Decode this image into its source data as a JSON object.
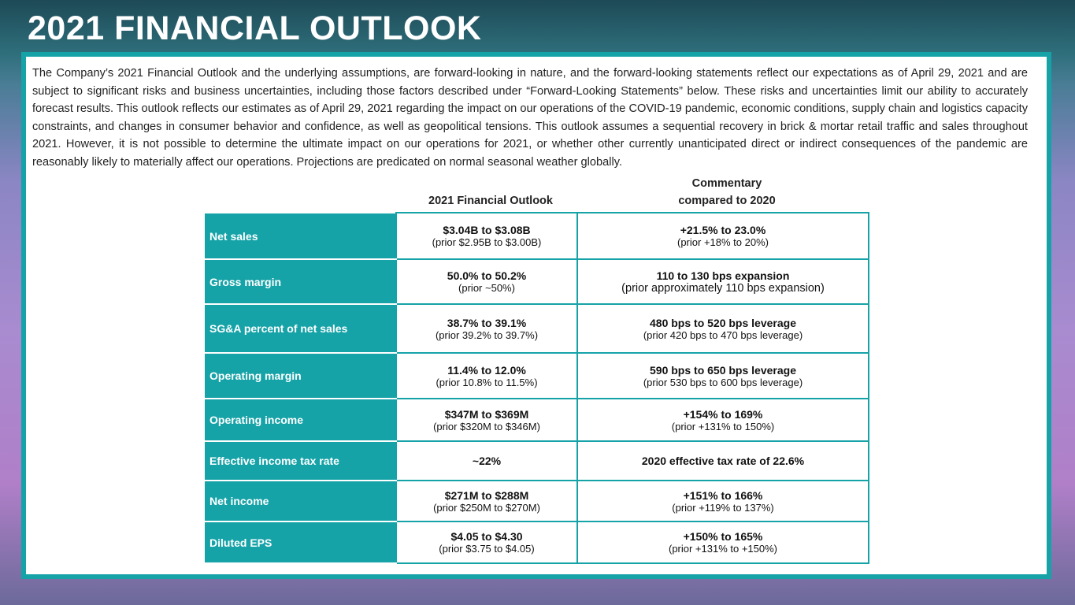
{
  "header": {
    "title": "2021 FINANCIAL OUTLOOK"
  },
  "intro": "The Company’s 2021 Financial Outlook and the underlying assumptions, are forward-looking in nature, and the forward-looking statements reflect our expectations as of April 29, 2021 and are subject to significant risks and business uncertainties, including those factors described under “Forward-Looking Statements” below. These risks and uncertainties limit our ability to accurately forecast results. This outlook reflects our estimates as of April 29, 2021 regarding the impact on our operations of the COVID-19 pandemic, economic conditions, supply chain and logistics capacity constraints, and changes in consumer behavior and confidence, as well as geopolitical tensions. This outlook assumes a sequential recovery in brick & mortar retail traffic and sales throughout 2021. However, it is not possible to determine the ultimate impact on our operations for 2021, or whether other currently unanticipated direct or indirect consequences of the pandemic are reasonably likely to materially affect our operations. Projections are predicated on normal seasonal weather globally.",
  "table": {
    "columns": [
      "2021 Financial Outlook",
      "Commentary compared to 2020"
    ],
    "rows": [
      {
        "label": "Net sales",
        "outlook": {
          "main": "$3.04B to $3.08B",
          "prior": "(prior $2.95B to $3.00B)"
        },
        "commentary": {
          "main": "+21.5% to 23.0%",
          "prior": "(prior +18% to 20%)"
        }
      },
      {
        "label": "Gross margin",
        "outlook": {
          "main": "50.0% to 50.2%",
          "prior": "(prior ~50%)"
        },
        "commentary": {
          "main": "110 to 130 bps expansion",
          "prior": "(prior approximately 110 bps expansion)"
        }
      },
      {
        "label": "SG&A percent of net sales",
        "outlook": {
          "main": "38.7% to 39.1%",
          "prior": "(prior 39.2% to 39.7%)"
        },
        "commentary": {
          "main": "480 bps to 520 bps leverage",
          "prior": "(prior 420 bps to 470 bps leverage)"
        }
      },
      {
        "label": "Operating margin",
        "outlook": {
          "main": "11.4% to 12.0%",
          "prior": "(prior 10.8% to 11.5%)"
        },
        "commentary": {
          "main": "590 bps to 650 bps leverage",
          "prior": "(prior 530 bps to 600 bps leverage)"
        }
      },
      {
        "label": "Operating income",
        "outlook": {
          "main": "$347M to $369M",
          "prior": "(prior $320M to $346M)"
        },
        "commentary": {
          "main": "+154% to 169%",
          "prior": "(prior +131% to 150%)"
        }
      },
      {
        "label": "Effective income tax rate",
        "outlook": {
          "main": "~22%"
        },
        "commentary": {
          "main": "2020 effective tax rate of 22.6%"
        }
      },
      {
        "label": "Net income",
        "outlook": {
          "main": "$271M to $288M",
          "prior": "(prior $250M to $270M)"
        },
        "commentary": {
          "main": "+151% to 166%",
          "prior": "(prior +119% to 137%)"
        }
      },
      {
        "label": "Diluted EPS",
        "outlook": {
          "main": "$4.05 to $4.30",
          "prior": "(prior $3.75 to $4.05)"
        },
        "commentary": {
          "main": "+150% to 165%",
          "prior": "(prior +131% to +150%)"
        }
      }
    ]
  }
}
